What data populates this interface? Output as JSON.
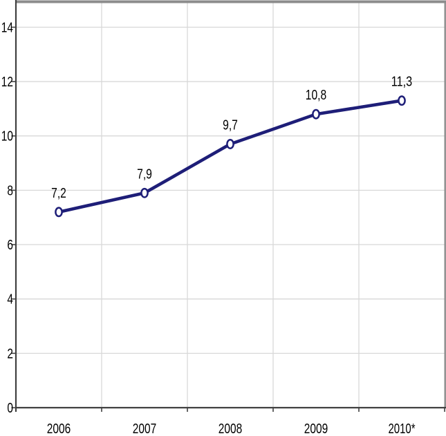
{
  "chart_data": {
    "type": "line",
    "categories": [
      "2006",
      "2007",
      "2008",
      "2009",
      "2010*"
    ],
    "values": [
      7.2,
      7.9,
      9.7,
      10.8,
      11.3
    ],
    "data_labels": [
      "7,2",
      "7,9",
      "9,7",
      "10,8",
      "11,3"
    ],
    "y_ticks": [
      0,
      2,
      4,
      6,
      8,
      10,
      12,
      14
    ],
    "y_tick_labels": [
      "0",
      "2",
      "4",
      "6",
      "8",
      "10",
      "12",
      "14"
    ],
    "ylim": [
      0,
      14.9
    ],
    "title": "",
    "xlabel": "",
    "ylabel": "",
    "grid": true,
    "legend": false,
    "colors": {
      "line": "#1e1e78",
      "marker_fill": "#ffffff",
      "marker_stroke": "#1e1e78",
      "grid": "#d8d8d8",
      "axis": "#404040",
      "border": "#8c8c8c",
      "text": "#000000",
      "background": "#ffffff"
    }
  }
}
